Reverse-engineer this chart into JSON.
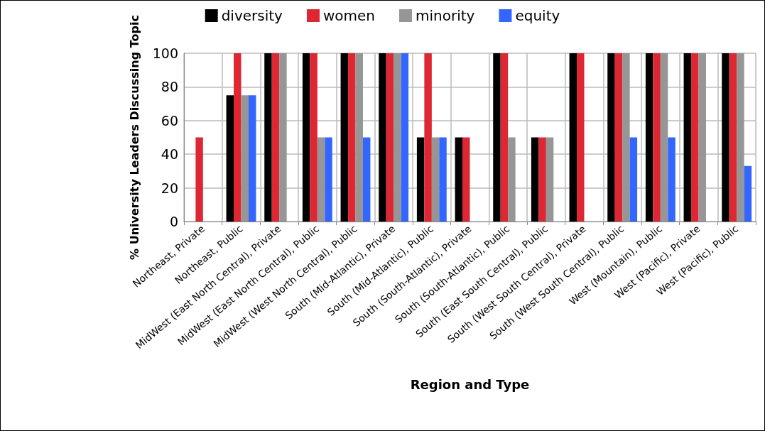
{
  "chart_data": {
    "type": "bar",
    "xlabel": "Region and Type",
    "ylabel": "% University Leaders Discussing Topic",
    "categories": [
      "Northeast, Private",
      "Northeast, Public",
      "MidWest (East North Central), Private",
      "MidWest (East North Central), Public",
      "MidWest (West North Central), Public",
      "South (Mid-Atlantic), Private",
      "South (Mid-Atlantic), Public",
      "South (South-Atlantic), Private",
      "South (South-Atlantic), Public",
      "South (East South Central), Public",
      "South (West South Central), Private",
      "South (West South Central), Public",
      "West (Mountain), Public",
      "West (Pacific), Private",
      "West (Pacific), Public"
    ],
    "series": [
      {
        "name": "diversity",
        "color": "#000000",
        "values": [
          0,
          75,
          100,
          100,
          100,
          100,
          50,
          50,
          100,
          50,
          100,
          100,
          100,
          100,
          100
        ]
      },
      {
        "name": "women",
        "color": "#dd2833",
        "values": [
          50,
          100,
          100,
          100,
          100,
          100,
          100,
          50,
          100,
          50,
          100,
          100,
          100,
          100,
          100
        ]
      },
      {
        "name": "minority",
        "color": "#969696",
        "values": [
          0,
          75,
          100,
          50,
          100,
          100,
          50,
          0,
          50,
          50,
          0,
          100,
          100,
          100,
          100
        ]
      },
      {
        "name": "equity",
        "color": "#3366ff",
        "values": [
          0,
          75,
          0,
          50,
          50,
          100,
          50,
          0,
          0,
          0,
          0,
          50,
          50,
          0,
          33
        ]
      }
    ],
    "ylim": [
      0,
      100
    ],
    "yticks": [
      0,
      20,
      40,
      60,
      80,
      100
    ],
    "grid": true,
    "legend": "top"
  }
}
